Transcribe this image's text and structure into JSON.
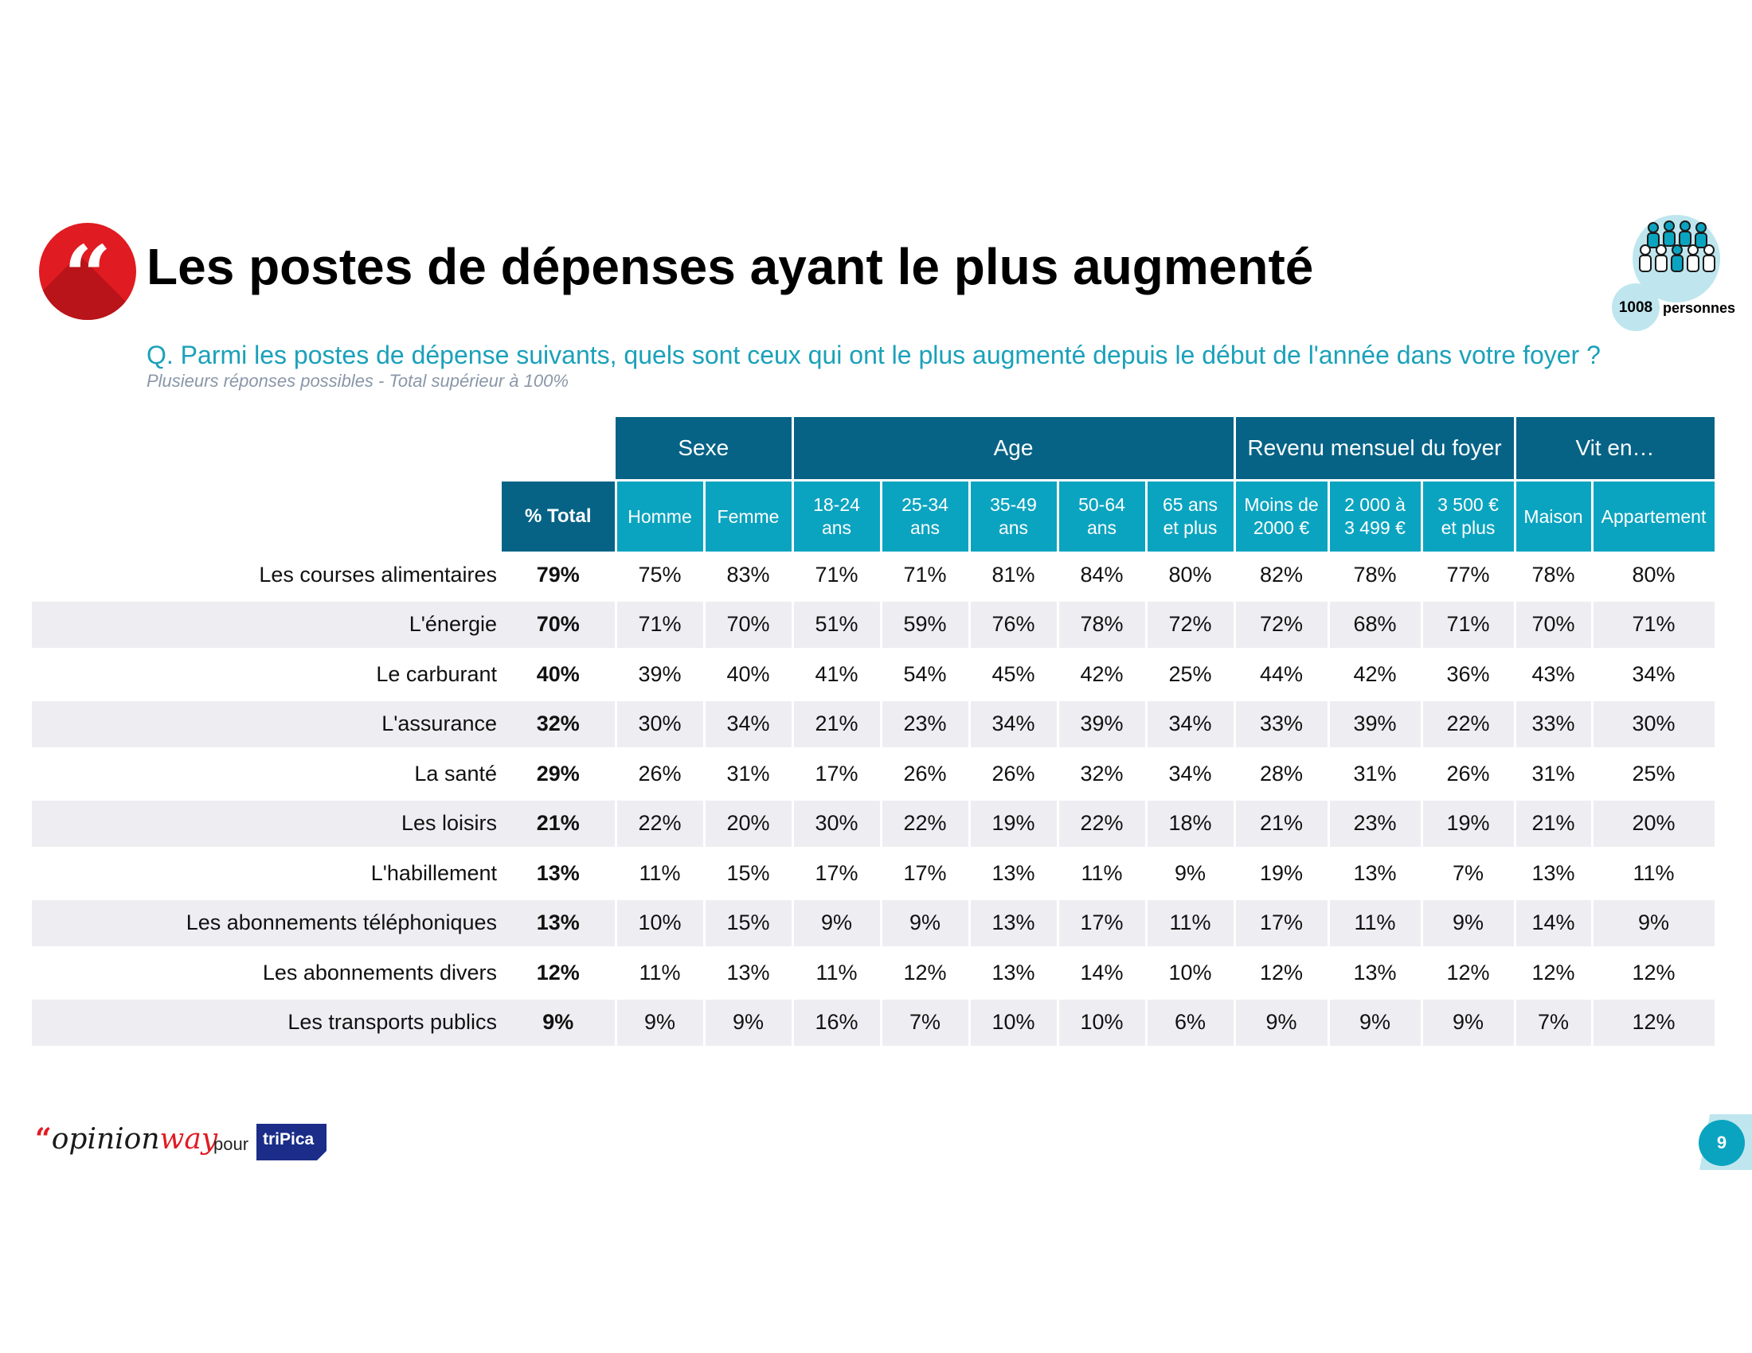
{
  "header": {
    "quote_glyph": "“",
    "title": "Les postes de dépenses ayant le plus augmenté",
    "question": "Q. Parmi les postes de dépense suivants, quels sont ceux qui ont le plus augmenté depuis le début de l'année dans votre foyer ?",
    "note": "Plusieurs réponses possibles - Total supérieur à 100%"
  },
  "sample": {
    "count": "1008",
    "label": "personnes",
    "icon": "people-group-icon"
  },
  "table": {
    "groups": [
      {
        "label": "Sexe",
        "span": 2
      },
      {
        "label": "Age",
        "span": 5
      },
      {
        "label": "Revenu mensuel du foyer",
        "span": 3
      },
      {
        "label": "Vit en…",
        "span": 2
      }
    ],
    "total_header": "% Total",
    "subheaders": [
      [
        "Homme"
      ],
      [
        "Femme"
      ],
      [
        "18-24",
        "ans"
      ],
      [
        "25-34",
        "ans"
      ],
      [
        "35-49",
        "ans"
      ],
      [
        "50-64",
        "ans"
      ],
      [
        "65 ans",
        "et plus"
      ],
      [
        "Moins de",
        "2000 €"
      ],
      [
        "2 000 à",
        "3 499 €"
      ],
      [
        "3 500 €",
        "et plus"
      ],
      [
        "Maison"
      ],
      [
        "Appartement"
      ]
    ],
    "rows": [
      {
        "label": "Les courses alimentaires",
        "total": "79%",
        "values": [
          "75%",
          "83%",
          "71%",
          "71%",
          "81%",
          "84%",
          "80%",
          "82%",
          "78%",
          "77%",
          "78%",
          "80%"
        ]
      },
      {
        "label": "L'énergie",
        "total": "70%",
        "values": [
          "71%",
          "70%",
          "51%",
          "59%",
          "76%",
          "78%",
          "72%",
          "72%",
          "68%",
          "71%",
          "70%",
          "71%"
        ]
      },
      {
        "label": "Le carburant",
        "total": "40%",
        "values": [
          "39%",
          "40%",
          "41%",
          "54%",
          "45%",
          "42%",
          "25%",
          "44%",
          "42%",
          "36%",
          "43%",
          "34%"
        ]
      },
      {
        "label": "L'assurance",
        "total": "32%",
        "values": [
          "30%",
          "34%",
          "21%",
          "23%",
          "34%",
          "39%",
          "34%",
          "33%",
          "39%",
          "22%",
          "33%",
          "30%"
        ]
      },
      {
        "label": "La santé",
        "total": "29%",
        "values": [
          "26%",
          "31%",
          "17%",
          "26%",
          "26%",
          "32%",
          "34%",
          "28%",
          "31%",
          "26%",
          "31%",
          "25%"
        ]
      },
      {
        "label": "Les loisirs",
        "total": "21%",
        "values": [
          "22%",
          "20%",
          "30%",
          "22%",
          "19%",
          "22%",
          "18%",
          "21%",
          "23%",
          "19%",
          "21%",
          "20%"
        ]
      },
      {
        "label": "L'habillement",
        "total": "13%",
        "values": [
          "11%",
          "15%",
          "17%",
          "17%",
          "13%",
          "11%",
          "9%",
          "19%",
          "13%",
          "7%",
          "13%",
          "11%"
        ]
      },
      {
        "label": "Les abonnements téléphoniques",
        "total": "13%",
        "values": [
          "10%",
          "15%",
          "9%",
          "9%",
          "13%",
          "17%",
          "11%",
          "17%",
          "11%",
          "9%",
          "14%",
          "9%"
        ]
      },
      {
        "label": "Les abonnements divers",
        "total": "12%",
        "values": [
          "11%",
          "13%",
          "11%",
          "12%",
          "13%",
          "14%",
          "10%",
          "12%",
          "13%",
          "12%",
          "12%",
          "12%"
        ]
      },
      {
        "label": "Les transports publics",
        "total": "9%",
        "values": [
          "9%",
          "9%",
          "16%",
          "7%",
          "10%",
          "10%",
          "6%",
          "9%",
          "9%",
          "9%",
          "7%",
          "12%"
        ]
      }
    ]
  },
  "footer": {
    "logo_quote": "“",
    "logo_text": "opinion",
    "logo_text_accent": "way",
    "pour": "pour",
    "partner": "triPica",
    "page_number": "9"
  },
  "colors": {
    "accent_red": "#e11b22",
    "header_dark": "#066386",
    "header_light": "#0ba4c0",
    "row_shade": "#eeeef2"
  }
}
